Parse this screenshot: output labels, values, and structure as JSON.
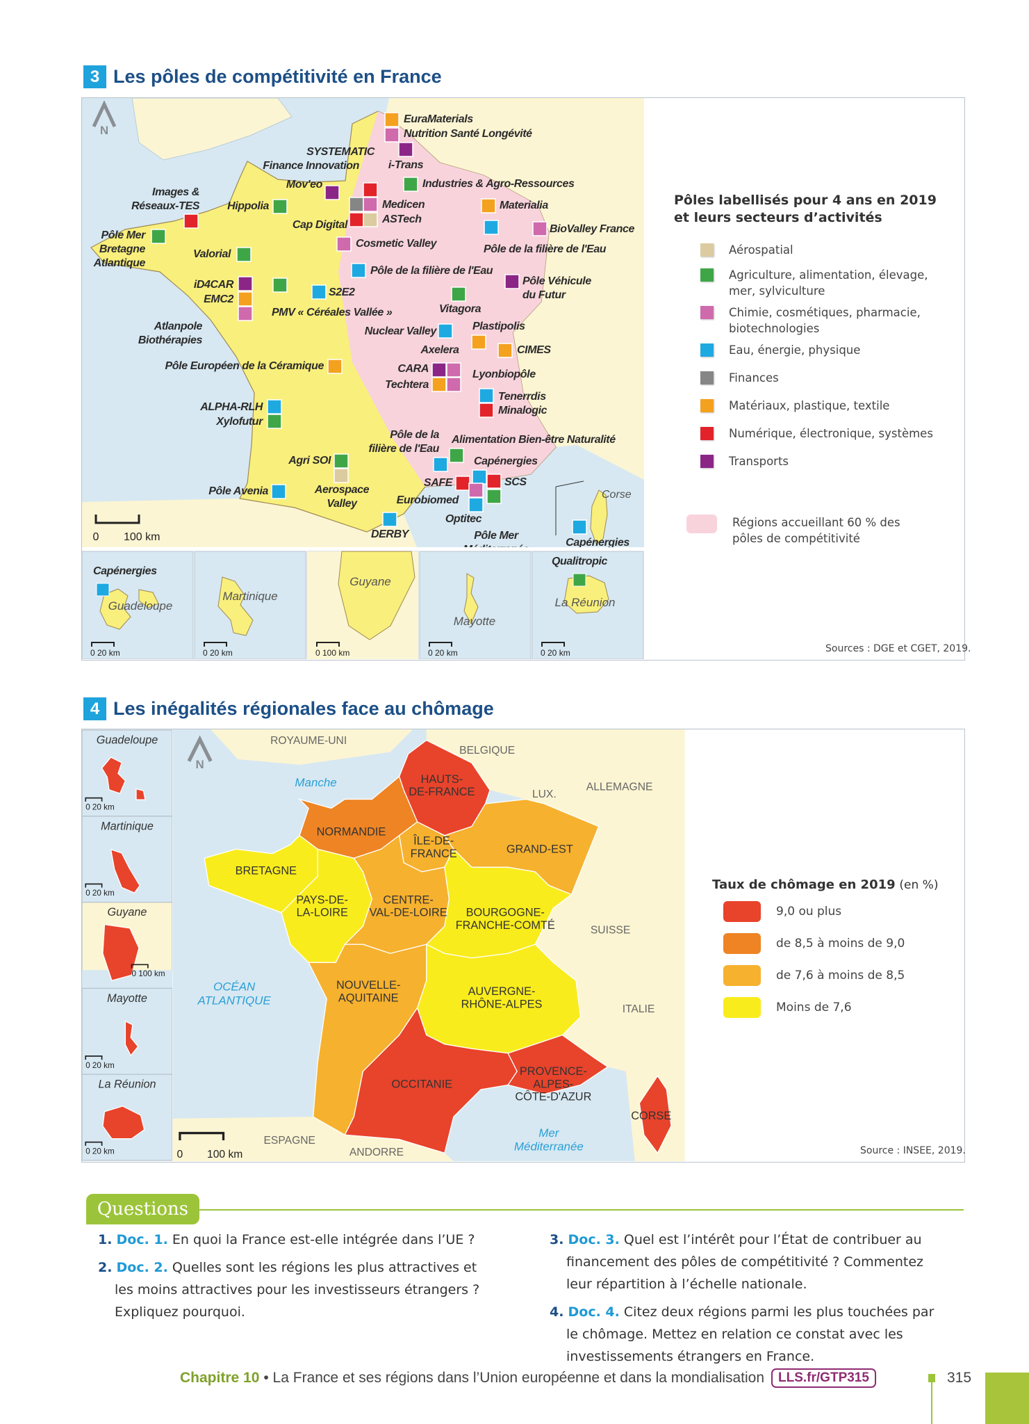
{
  "colors": {
    "accent_blue": "#1fa3dc",
    "title_blue": "#1c4f86",
    "green": "#9cc43a",
    "pink_region": "#f8d3dc",
    "sea": "#d7e8f2",
    "land": "#fcf5d3"
  },
  "doc3": {
    "number": "3",
    "title": "Les pôles de compétitivité en France",
    "north": "N",
    "scale": {
      "zero": "0",
      "label": "100 km"
    },
    "corse": "Corse",
    "sectors": {
      "aero": {
        "label": "Aérospatial",
        "color": "#dccba0"
      },
      "agri": {
        "label": "Agriculture, alimentation, élevage, mer, sylviculture",
        "color": "#3fa648"
      },
      "chimie": {
        "label": "Chimie, cosmétiques, pharmacie, biotechnologies",
        "color": "#cf6aad"
      },
      "eau": {
        "label": "Eau, énergie, physique",
        "color": "#1fa9e1"
      },
      "fin": {
        "label": "Finances",
        "color": "#868686"
      },
      "mat": {
        "label": "Matériaux, plastique, textile",
        "color": "#f4a11f"
      },
      "num": {
        "label": "Numérique, électronique, systèmes",
        "color": "#e2232a"
      },
      "trans": {
        "label": "Transports",
        "color": "#8b2687"
      }
    },
    "legend": {
      "title": "Pôles labellisés pour 4 ans en 2019 et leurs secteurs d’activités",
      "region_label": "Régions accueillant 60 % des pôles de compétitivité",
      "order": [
        "aero",
        "agri",
        "chimie",
        "eau",
        "fin",
        "mat",
        "num",
        "trans"
      ]
    },
    "poles": [
      {
        "label_lines": [
          "EuraMaterials"
        ],
        "sector": "mat"
      },
      {
        "label_lines": [
          "Nutrition Santé Longévité"
        ],
        "sector": "chimie"
      },
      {
        "label_lines": [
          "i-Trans"
        ],
        "sector": "trans"
      },
      {
        "label_lines": [
          "Industries & Agro-Ressources"
        ],
        "sector": "agri"
      },
      {
        "label_lines": [
          "Mov'eo"
        ],
        "sector": "trans"
      },
      {
        "label_lines": [
          "SYSTEMATIC"
        ],
        "sector": "num"
      },
      {
        "label_lines": [
          "Finance Innovation"
        ],
        "sector": "fin"
      },
      {
        "label_lines": [
          "Medicen"
        ],
        "sector": "chimie"
      },
      {
        "label_lines": [
          "Cap Digital"
        ],
        "sector": "num"
      },
      {
        "label_lines": [
          "ASTech"
        ],
        "sector": "aero"
      },
      {
        "label_lines": [
          "Images &",
          "Réseaux-TES"
        ],
        "sector": "num"
      },
      {
        "label_lines": [
          "Hippolia"
        ],
        "sector": "agri"
      },
      {
        "label_lines": [
          "Pôle Mer",
          "Bretagne",
          "Atlantique"
        ],
        "sector": "agri"
      },
      {
        "label_lines": [
          "Valorial"
        ],
        "sector": "agri"
      },
      {
        "label_lines": [
          "Cosmetic Valley"
        ],
        "sector": "chimie"
      },
      {
        "label_lines": [
          "Materialia"
        ],
        "sector": "mat"
      },
      {
        "label_lines": [
          "Pôle de la filière de l'Eau"
        ],
        "sector": "eau"
      },
      {
        "label_lines": [
          "BioValley France"
        ],
        "sector": "chimie"
      },
      {
        "label_lines": [
          "Pôle de la filière de l'Eau"
        ],
        "sector": "eau"
      },
      {
        "label_lines": [
          "Pôle Véhicule",
          "du Futur"
        ],
        "sector": "trans"
      },
      {
        "label_lines": [
          "iD4CAR"
        ],
        "sector": "trans"
      },
      {
        "label_lines": [
          "EMC2"
        ],
        "sector": "mat"
      },
      {
        "label_lines": [
          "Atlanpole",
          "Biothérapies"
        ],
        "sector": "chimie"
      },
      {
        "label_lines": [
          "PMV « Céréales Vallée »"
        ],
        "sector": "agri"
      },
      {
        "label_lines": [
          "S2E2"
        ],
        "sector": "eau"
      },
      {
        "label_lines": [
          "Vitagora"
        ],
        "sector": "agri"
      },
      {
        "label_lines": [
          "Nuclear Valley"
        ],
        "sector": "eau"
      },
      {
        "label_lines": [
          "Plastipolis"
        ],
        "sector": "mat"
      },
      {
        "label_lines": [
          "CIMES"
        ],
        "sector": "mat"
      },
      {
        "label_lines": [
          "Pôle Européen de la Céramique"
        ],
        "sector": "mat"
      },
      {
        "label_lines": [
          "CARA"
        ],
        "sector": "trans"
      },
      {
        "label_lines": [
          "Axelera"
        ],
        "sector": "chimie"
      },
      {
        "label_lines": [
          "Techtera"
        ],
        "sector": "mat"
      },
      {
        "label_lines": [
          "Lyonbiopôle"
        ],
        "sector": "chimie"
      },
      {
        "label_lines": [
          "Tenerrdis"
        ],
        "sector": "eau"
      },
      {
        "label_lines": [
          "Minalogic"
        ],
        "sector": "num"
      },
      {
        "label_lines": [
          "ALPHA-RLH"
        ],
        "sector": "eau"
      },
      {
        "label_lines": [
          "Xylofutur"
        ],
        "sector": "agri"
      },
      {
        "label_lines": [
          "Alimentation Bien-être Naturalité"
        ],
        "sector": "agri"
      },
      {
        "label_lines": [
          "Pôle de la",
          "filière de l'Eau"
        ],
        "sector": "eau"
      },
      {
        "label_lines": [
          "Agri SOI"
        ],
        "sector": "agri"
      },
      {
        "label_lines": [
          "Aerospace",
          "Valley"
        ],
        "sector": "aero"
      },
      {
        "label_lines": [
          "Capénergies"
        ],
        "sector": "eau"
      },
      {
        "label_lines": [
          "SAFE"
        ],
        "sector": "num"
      },
      {
        "label_lines": [
          "SCS"
        ],
        "sector": "num"
      },
      {
        "label_lines": [
          "Eurobiomed"
        ],
        "sector": "chimie"
      },
      {
        "label_lines": [
          "Pôle Mer",
          "Méditerranée"
        ],
        "sector": "agri"
      },
      {
        "label_lines": [
          "Optitec"
        ],
        "sector": "eau"
      },
      {
        "label_lines": [
          "Pôle Avenia"
        ],
        "sector": "eau"
      },
      {
        "label_lines": [
          "DERBY"
        ],
        "sector": "eau"
      },
      {
        "label_lines": [
          "Capénergies"
        ],
        "sector": "eau"
      }
    ],
    "insets": [
      {
        "name": "Guadeloupe",
        "pole": "Capénergies",
        "pole_sector": "eau",
        "scale": "0   20 km"
      },
      {
        "name": "Martinique",
        "scale": "0   20 km"
      },
      {
        "name": "Guyane",
        "scale": "0  100 km"
      },
      {
        "name": "Mayotte",
        "scale": "0   20 km"
      },
      {
        "name": "La Réunion",
        "pole": "Qualitropic",
        "pole_sector": "agri",
        "scale": "0   20 km"
      }
    ],
    "source": "Sources : DGE et CGET, 2019."
  },
  "doc4": {
    "number": "4",
    "title": "Les inégalités régionales face au chômage",
    "north": "N",
    "scale": {
      "zero": "0",
      "label": "100 km"
    },
    "classes": [
      {
        "key": "c1",
        "label": "9,0 ou plus",
        "color": "#e8432b"
      },
      {
        "key": "c2",
        "label": "de 8,5 à moins de 9,0",
        "color": "#ee8424"
      },
      {
        "key": "c3",
        "label": "de 7,6 à moins de 8,5",
        "color": "#f6b12e"
      },
      {
        "key": "c4",
        "label": "Moins de 7,6",
        "color": "#f9ec1c"
      }
    ],
    "legend_title": "Taux de chômage en 2019",
    "legend_unit": "(en %)",
    "regions": [
      {
        "label_lines": [
          "HAUTS-",
          "DE-FRANCE"
        ],
        "class": "c1"
      },
      {
        "label_lines": [
          "NORMANDIE"
        ],
        "class": "c2"
      },
      {
        "label_lines": [
          "ÎLE-DE-",
          "FRANCE"
        ],
        "class": "c3"
      },
      {
        "label_lines": [
          "GRAND-EST"
        ],
        "class": "c3"
      },
      {
        "label_lines": [
          "BRETAGNE"
        ],
        "class": "c4"
      },
      {
        "label_lines": [
          "PAYS-DE-",
          "LA-LOIRE"
        ],
        "class": "c4"
      },
      {
        "label_lines": [
          "CENTRE-",
          "VAL-DE-LOIRE"
        ],
        "class": "c3"
      },
      {
        "label_lines": [
          "BOURGOGNE-",
          "FRANCHE-COMTÉ"
        ],
        "class": "c4"
      },
      {
        "label_lines": [
          "NOUVELLE-",
          "AQUITAINE"
        ],
        "class": "c3"
      },
      {
        "label_lines": [
          "AUVERGNE-",
          "RHÔNE-ALPES"
        ],
        "class": "c4"
      },
      {
        "label_lines": [
          "OCCITANIE"
        ],
        "class": "c1"
      },
      {
        "label_lines": [
          "PROVENCE-",
          "ALPES-",
          "CÔTE-D'AZUR"
        ],
        "class": "c1"
      },
      {
        "label_lines": [
          "CORSE"
        ],
        "class": "c1"
      }
    ],
    "countries": [
      "ROYAUME-UNI",
      "BELGIQUE",
      "LUX.",
      "ALLEMAGNE",
      "SUISSE",
      "ITALIE",
      "ESPAGNE",
      "ANDORRE"
    ],
    "seas": {
      "manche": "Manche",
      "ocean": [
        "OCÉAN",
        "ATLANTIQUE"
      ],
      "med": [
        "Mer",
        "Méditerranée"
      ]
    },
    "insets": [
      {
        "name": "Guadeloupe",
        "class": "c1",
        "scale": "0  20 km"
      },
      {
        "name": "Martinique",
        "class": "c1",
        "scale": "0  20 km"
      },
      {
        "name": "Guyane",
        "class": "c1",
        "scale": "0 100 km"
      },
      {
        "name": "Mayotte",
        "class": "c1",
        "scale": "0  20 km"
      },
      {
        "name": "La Réunion",
        "class": "c1",
        "scale": "0  20 km"
      }
    ],
    "source": "Source : INSEE, 2019."
  },
  "questions": {
    "heading": "Questions",
    "items": [
      {
        "num": "1.",
        "doc": "Doc. 1.",
        "text": "En quoi la France est-elle intégrée dans l’UE ?"
      },
      {
        "num": "2.",
        "doc": "Doc. 2.",
        "text": "Quelles sont les régions les plus attractives et les moins attractives pour les investisseurs étrangers ? Expliquez pourquoi."
      },
      {
        "num": "3.",
        "doc": "Doc. 3.",
        "text": "Quel est l’intérêt pour l’État de contribuer au financement des pôles de compétitivité ? Commentez leur répartition à l’échelle nationale."
      },
      {
        "num": "4.",
        "doc": "Doc. 4.",
        "text": "Citez deux régions parmi les plus touchées par le chômage. Mettez en relation ce constat avec les investissements étrangers en France."
      }
    ]
  },
  "footer": {
    "chapter": "Chapitre 10",
    "text": "• La France et ses régions dans l’Union européenne et dans la mondialisation",
    "link": "LLS.fr/GTP315",
    "page": "315"
  }
}
